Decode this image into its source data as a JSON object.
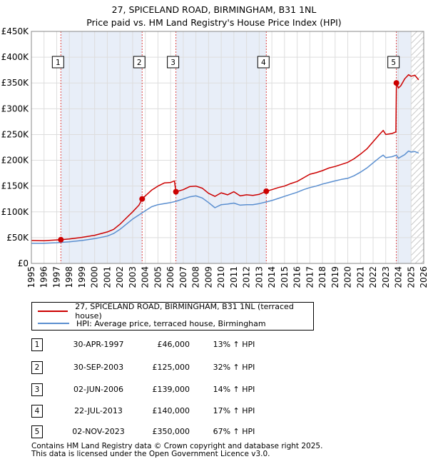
{
  "title_line1": "27, SPICELAND ROAD, BIRMINGHAM, B31 1NL",
  "title_line2": "Price paid vs. HM Land Registry's House Price Index (HPI)",
  "chart_data": {
    "type": "line",
    "title": "27, SPICELAND ROAD, BIRMINGHAM, B31 1NL - Price paid vs. HM Land Registry's House Price Index (HPI)",
    "xlim": [
      1995,
      2026
    ],
    "ylim": [
      0,
      450000
    ],
    "x_ticks": [
      1995,
      1996,
      1997,
      1998,
      1999,
      2000,
      2001,
      2002,
      2003,
      2004,
      2005,
      2006,
      2007,
      2008,
      2009,
      2010,
      2011,
      2012,
      2013,
      2014,
      2015,
      2016,
      2017,
      2018,
      2019,
      2020,
      2021,
      2022,
      2023,
      2024,
      2025,
      2026
    ],
    "y_ticks": [
      {
        "value": 0,
        "label": "£0"
      },
      {
        "value": 50000,
        "label": "£50K"
      },
      {
        "value": 100000,
        "label": "£100K"
      },
      {
        "value": 150000,
        "label": "£150K"
      },
      {
        "value": 200000,
        "label": "£200K"
      },
      {
        "value": 250000,
        "label": "£250K"
      },
      {
        "value": 300000,
        "label": "£300K"
      },
      {
        "value": 350000,
        "label": "£350K"
      },
      {
        "value": 400000,
        "label": "£400K"
      },
      {
        "value": 450000,
        "label": "£450K"
      }
    ],
    "forecast_from": 2025.0,
    "shaded_periods": [
      [
        1997.33,
        2003.75
      ],
      [
        2006.42,
        2013.56
      ],
      [
        2023.84,
        2025.0
      ]
    ],
    "series": [
      {
        "name": "27, SPICELAND ROAD, BIRMINGHAM, B31 1NL (terraced house)",
        "color": "#cc0000",
        "points": [
          [
            1995.0,
            44500
          ],
          [
            1996.0,
            44000
          ],
          [
            1996.5,
            44800
          ],
          [
            1997.0,
            45500
          ],
          [
            1997.33,
            46000
          ],
          [
            1998.0,
            47500
          ],
          [
            1999.0,
            50500
          ],
          [
            2000.0,
            54500
          ],
          [
            2001.0,
            61000
          ],
          [
            2001.5,
            66000
          ],
          [
            2002.0,
            76000
          ],
          [
            2002.5,
            88000
          ],
          [
            2003.0,
            100000
          ],
          [
            2003.5,
            113000
          ],
          [
            2003.75,
            125000
          ],
          [
            2004.0,
            131000
          ],
          [
            2004.5,
            142000
          ],
          [
            2005.0,
            150000
          ],
          [
            2005.5,
            156000
          ],
          [
            2006.0,
            157000
          ],
          [
            2006.3,
            160000
          ],
          [
            2006.42,
            139000
          ],
          [
            2007.0,
            143000
          ],
          [
            2007.5,
            149000
          ],
          [
            2008.0,
            150000
          ],
          [
            2008.5,
            146000
          ],
          [
            2009.0,
            136000
          ],
          [
            2009.5,
            130000
          ],
          [
            2010.0,
            137000
          ],
          [
            2010.5,
            133000
          ],
          [
            2011.0,
            139000
          ],
          [
            2011.5,
            131000
          ],
          [
            2012.0,
            133000
          ],
          [
            2012.5,
            132000
          ],
          [
            2013.0,
            134000
          ],
          [
            2013.56,
            140000
          ],
          [
            2014.0,
            143000
          ],
          [
            2014.5,
            147000
          ],
          [
            2015.0,
            150000
          ],
          [
            2015.5,
            155000
          ],
          [
            2016.0,
            159000
          ],
          [
            2016.5,
            166000
          ],
          [
            2017.0,
            173000
          ],
          [
            2017.5,
            176000
          ],
          [
            2018.0,
            180000
          ],
          [
            2018.5,
            185000
          ],
          [
            2019.0,
            188000
          ],
          [
            2019.5,
            192000
          ],
          [
            2020.0,
            196000
          ],
          [
            2020.5,
            203000
          ],
          [
            2021.0,
            212000
          ],
          [
            2021.5,
            222000
          ],
          [
            2022.0,
            236000
          ],
          [
            2022.5,
            250000
          ],
          [
            2022.8,
            258000
          ],
          [
            2023.0,
            250000
          ],
          [
            2023.5,
            252000
          ],
          [
            2023.8,
            255000
          ],
          [
            2023.84,
            350000
          ],
          [
            2024.0,
            340000
          ],
          [
            2024.2,
            345000
          ],
          [
            2024.5,
            358000
          ],
          [
            2024.8,
            366000
          ],
          [
            2025.0,
            363000
          ],
          [
            2025.3,
            365000
          ],
          [
            2025.6,
            356000
          ]
        ]
      },
      {
        "name": "HPI: Average price, terraced house, Birmingham",
        "color": "#5b8fd0",
        "points": [
          [
            1995.0,
            39000
          ],
          [
            1996.0,
            39200
          ],
          [
            1997.0,
            40200
          ],
          [
            1998.0,
            42000
          ],
          [
            1999.0,
            44500
          ],
          [
            2000.0,
            48000
          ],
          [
            2001.0,
            53000
          ],
          [
            2001.5,
            58000
          ],
          [
            2002.0,
            66000
          ],
          [
            2002.5,
            76000
          ],
          [
            2003.0,
            86000
          ],
          [
            2003.5,
            94000
          ],
          [
            2004.0,
            102000
          ],
          [
            2004.5,
            110000
          ],
          [
            2005.0,
            114000
          ],
          [
            2005.5,
            116000
          ],
          [
            2006.0,
            118000
          ],
          [
            2006.5,
            121000
          ],
          [
            2007.0,
            125000
          ],
          [
            2007.5,
            129000
          ],
          [
            2008.0,
            131000
          ],
          [
            2008.5,
            127000
          ],
          [
            2009.0,
            118000
          ],
          [
            2009.5,
            108000
          ],
          [
            2010.0,
            114000
          ],
          [
            2010.5,
            115000
          ],
          [
            2011.0,
            117000
          ],
          [
            2011.5,
            113000
          ],
          [
            2012.0,
            114000
          ],
          [
            2012.5,
            114000
          ],
          [
            2013.0,
            116000
          ],
          [
            2013.5,
            119000
          ],
          [
            2014.0,
            122000
          ],
          [
            2014.5,
            126000
          ],
          [
            2015.0,
            130000
          ],
          [
            2015.5,
            134000
          ],
          [
            2016.0,
            138000
          ],
          [
            2016.5,
            143000
          ],
          [
            2017.0,
            147000
          ],
          [
            2017.5,
            150000
          ],
          [
            2018.0,
            154000
          ],
          [
            2018.5,
            157000
          ],
          [
            2019.0,
            160000
          ],
          [
            2019.5,
            163000
          ],
          [
            2020.0,
            165000
          ],
          [
            2020.5,
            170000
          ],
          [
            2021.0,
            177000
          ],
          [
            2021.5,
            185000
          ],
          [
            2022.0,
            195000
          ],
          [
            2022.5,
            205000
          ],
          [
            2022.8,
            210000
          ],
          [
            2023.0,
            205000
          ],
          [
            2023.5,
            207000
          ],
          [
            2023.84,
            210000
          ],
          [
            2024.0,
            204000
          ],
          [
            2024.5,
            211000
          ],
          [
            2024.8,
            218000
          ],
          [
            2025.0,
            216000
          ],
          [
            2025.3,
            217000
          ],
          [
            2025.6,
            214000
          ]
        ]
      }
    ],
    "sales": [
      {
        "num": "1",
        "x": 1997.33,
        "price": 46000
      },
      {
        "num": "2",
        "x": 2003.75,
        "price": 125000
      },
      {
        "num": "3",
        "x": 2006.42,
        "price": 139000
      },
      {
        "num": "4",
        "x": 2013.56,
        "price": 140000
      },
      {
        "num": "5",
        "x": 2023.84,
        "price": 350000
      }
    ]
  },
  "legend": {
    "property_label": "27, SPICELAND ROAD, BIRMINGHAM, B31 1NL (terraced house)",
    "hpi_label": "HPI: Average price, terraced house, Birmingham"
  },
  "sales_table": [
    {
      "num": "1",
      "date": "30-APR-1997",
      "price": "£46,000",
      "hpi": "13% ↑ HPI"
    },
    {
      "num": "2",
      "date": "30-SEP-2003",
      "price": "£125,000",
      "hpi": "32% ↑ HPI"
    },
    {
      "num": "3",
      "date": "02-JUN-2006",
      "price": "£139,000",
      "hpi": "14% ↑ HPI"
    },
    {
      "num": "4",
      "date": "22-JUL-2013",
      "price": "£140,000",
      "hpi": "17% ↑ HPI"
    },
    {
      "num": "5",
      "date": "02-NOV-2023",
      "price": "£350,000",
      "hpi": "67% ↑ HPI"
    }
  ],
  "footer_line1": "Contains HM Land Registry data © Crown copyright and database right 2025.",
  "footer_line2": "This data is licensed under the Open Government Licence v3.0."
}
